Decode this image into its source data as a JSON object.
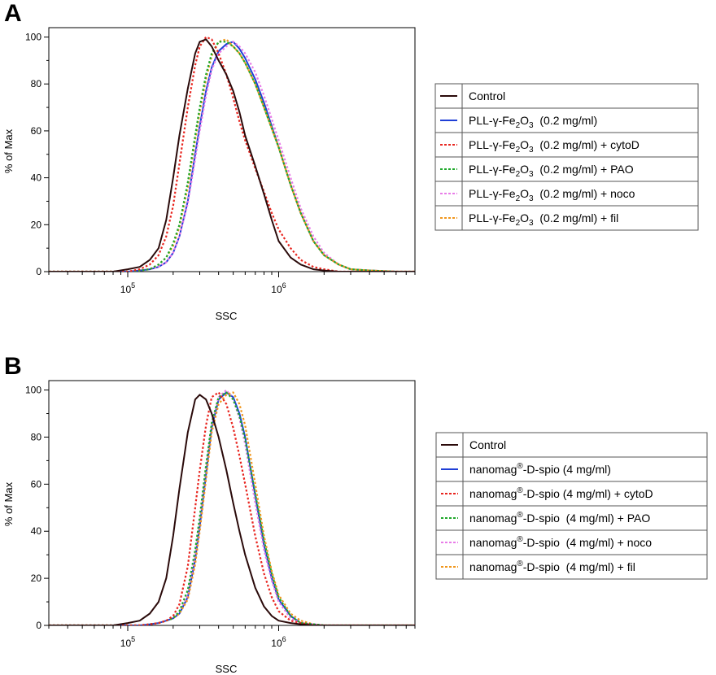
{
  "chart_data": [
    {
      "type": "line",
      "panel_label": "A",
      "xlabel": "SSC",
      "ylabel": "% of Max",
      "x_scale": "log",
      "xlim": [
        30000,
        8000000
      ],
      "ylim": [
        0,
        104
      ],
      "x_ticks": [
        {
          "base": "10",
          "exp": "5"
        },
        {
          "base": "10",
          "exp": "6"
        }
      ],
      "y_ticks": [
        "0",
        "20",
        "40",
        "60",
        "80",
        "100"
      ],
      "legend": {
        "placement": "right"
      },
      "x": [
        30000,
        80000,
        100000,
        120000,
        140000,
        160000,
        180000,
        200000,
        220000,
        250000,
        280000,
        300000,
        330000,
        360000,
        400000,
        450000,
        500000,
        550000,
        600000,
        700000,
        800000,
        900000,
        1000000,
        1200000,
        1400000,
        1700000,
        2000000,
        2500000,
        3000000,
        4000000,
        6000000,
        8000000
      ],
      "series": [
        {
          "name": "Control",
          "color": "#2a0a0a",
          "dash": "solid",
          "values": [
            0,
            0,
            1,
            2,
            5,
            10,
            22,
            40,
            58,
            78,
            93,
            98,
            99,
            96,
            90,
            84,
            77,
            68,
            58,
            45,
            33,
            22,
            13,
            6,
            3,
            1,
            0.5,
            0,
            0,
            0,
            0,
            0
          ]
        },
        {
          "name": "PLL-γ-Fe₂O₃ (0.2 mg/ml)",
          "color": "#1f3fd6",
          "dash": "solid",
          "values": [
            0,
            0,
            0,
            0.5,
            1,
            2,
            4,
            8,
            15,
            30,
            50,
            62,
            77,
            87,
            94,
            97,
            98,
            95,
            91,
            82,
            72,
            62,
            53,
            37,
            25,
            13,
            7,
            3,
            1,
            0.5,
            0,
            0
          ]
        },
        {
          "name": "PLL-γ-Fe₂O₃ (0.2 mg/ml) + cytoD",
          "color": "#e8251f",
          "dash": "dashed",
          "values": [
            0,
            0,
            0,
            1,
            3,
            7,
            15,
            28,
            46,
            70,
            88,
            96,
            100,
            99,
            93,
            84,
            74,
            64,
            56,
            44,
            34,
            25,
            18,
            10,
            5,
            2,
            1,
            0,
            0,
            0,
            0,
            0
          ]
        },
        {
          "name": "PLL-γ-Fe₂O₃ (0.2 mg/ml) + PAO",
          "color": "#1ea82a",
          "dash": "dashed",
          "values": [
            0,
            0,
            0,
            0.5,
            1,
            3,
            6,
            12,
            20,
            38,
            58,
            70,
            84,
            93,
            98,
            98,
            96,
            93,
            89,
            80,
            70,
            61,
            53,
            37,
            25,
            13,
            7,
            3,
            1,
            0.5,
            0,
            0
          ]
        },
        {
          "name": "PLL-γ-Fe₂O₃ (0.2 mg/ml) + noco",
          "color": "#e87ce8",
          "dash": "dashed",
          "values": [
            0,
            0,
            0,
            0.5,
            1,
            2,
            4,
            8,
            15,
            29,
            48,
            60,
            75,
            86,
            93,
            96,
            98,
            96,
            93,
            85,
            75,
            65,
            56,
            40,
            27,
            15,
            8,
            3,
            1,
            0.5,
            0,
            0
          ]
        },
        {
          "name": "PLL-γ-Fe₂O₃ (0.2 mg/ml) + fil",
          "color": "#f0961c",
          "dash": "dashed",
          "values": [
            0,
            0,
            0,
            0.5,
            1,
            3,
            6,
            11,
            19,
            36,
            56,
            68,
            82,
            92,
            98,
            99,
            96,
            93,
            89,
            80,
            70,
            61,
            53,
            37,
            25,
            13,
            7,
            3,
            1,
            0.5,
            0,
            0
          ]
        }
      ]
    },
    {
      "type": "line",
      "panel_label": "B",
      "xlabel": "SSC",
      "ylabel": "% of Max",
      "x_scale": "log",
      "xlim": [
        30000,
        8000000
      ],
      "ylim": [
        0,
        104
      ],
      "x_ticks": [
        {
          "base": "10",
          "exp": "5"
        },
        {
          "base": "10",
          "exp": "6"
        }
      ],
      "y_ticks": [
        "0",
        "20",
        "40",
        "60",
        "80",
        "100"
      ],
      "legend": {
        "placement": "right"
      },
      "x": [
        30000,
        80000,
        100000,
        120000,
        140000,
        160000,
        180000,
        200000,
        220000,
        250000,
        280000,
        300000,
        330000,
        360000,
        400000,
        450000,
        500000,
        550000,
        600000,
        700000,
        800000,
        900000,
        1000000,
        1200000,
        1400000,
        1700000,
        2000000,
        2500000,
        3000000,
        4000000,
        6000000,
        8000000
      ],
      "series": [
        {
          "name": "Control",
          "color": "#2a0a0a",
          "dash": "solid",
          "values": [
            0,
            0,
            1,
            2,
            5,
            10,
            20,
            38,
            58,
            82,
            96,
            98,
            96,
            90,
            80,
            66,
            52,
            40,
            30,
            16,
            8,
            4,
            2,
            1,
            0.5,
            0,
            0,
            0,
            0,
            0,
            0,
            0
          ]
        },
        {
          "name": "nanomag®-D-spio (4 mg/ml)",
          "color": "#1f3fd6",
          "dash": "solid",
          "values": [
            0,
            0,
            0,
            0,
            0.5,
            1,
            2,
            3,
            5,
            12,
            28,
            42,
            64,
            84,
            96,
            99,
            97,
            90,
            80,
            55,
            34,
            20,
            11,
            4,
            1,
            0.5,
            0,
            0,
            0,
            0,
            0,
            0
          ]
        },
        {
          "name": "nanomag®-D-spio (4 mg/ml) + cytoD",
          "color": "#e8251f",
          "dash": "dashed",
          "values": [
            0,
            0,
            0,
            0,
            0.5,
            1,
            2,
            4,
            9,
            25,
            50,
            66,
            85,
            97,
            99,
            94,
            84,
            72,
            60,
            38,
            22,
            12,
            6,
            2,
            1,
            0,
            0,
            0,
            0,
            0,
            0,
            0
          ]
        },
        {
          "name": "nanomag®-D-spio (4 mg/ml) + PAO",
          "color": "#1ea82a",
          "dash": "dashed",
          "values": [
            0,
            0,
            0,
            0,
            0.5,
            1,
            2,
            3,
            6,
            15,
            32,
            46,
            68,
            86,
            97,
            99,
            96,
            89,
            79,
            56,
            36,
            22,
            12,
            4,
            1,
            0.5,
            0,
            0,
            0,
            0,
            0,
            0
          ]
        },
        {
          "name": "nanomag®-D-spio (4 mg/ml) + noco",
          "color": "#e87ce8",
          "dash": "dashed",
          "values": [
            0,
            0,
            0,
            0,
            0.5,
            1,
            2,
            3,
            5,
            13,
            30,
            44,
            66,
            85,
            97,
            100,
            96,
            88,
            77,
            52,
            32,
            19,
            10,
            3,
            1,
            0.5,
            0,
            0,
            0,
            0,
            0,
            0
          ]
        },
        {
          "name": "nanomag®-D-spio (4 mg/ml) + fil",
          "color": "#f0961c",
          "dash": "dashed",
          "values": [
            0,
            0,
            0,
            0,
            0.5,
            1,
            2,
            3,
            5,
            11,
            26,
            40,
            62,
            82,
            94,
            98,
            99,
            94,
            85,
            60,
            38,
            23,
            13,
            5,
            2,
            0.5,
            0,
            0,
            0,
            0,
            0,
            0
          ]
        }
      ]
    }
  ],
  "legends": [
    {
      "rows": [
        {
          "parts": [
            {
              "t": "Control"
            }
          ]
        },
        {
          "parts": [
            {
              "t": "PLL-γ-Fe"
            },
            {
              "t": "2",
              "sub": true
            },
            {
              "t": "O"
            },
            {
              "t": "3",
              "sub": true
            },
            {
              "t": "  (0.2 mg/ml)"
            }
          ]
        },
        {
          "parts": [
            {
              "t": "PLL-γ-Fe"
            },
            {
              "t": "2",
              "sub": true
            },
            {
              "t": "O"
            },
            {
              "t": "3",
              "sub": true
            },
            {
              "t": "  (0.2 mg/ml) + cytoD"
            }
          ]
        },
        {
          "parts": [
            {
              "t": "PLL-γ-Fe"
            },
            {
              "t": "2",
              "sub": true
            },
            {
              "t": "O"
            },
            {
              "t": "3",
              "sub": true
            },
            {
              "t": "  (0.2 mg/ml) + PAO"
            }
          ]
        },
        {
          "parts": [
            {
              "t": "PLL-γ-Fe"
            },
            {
              "t": "2",
              "sub": true
            },
            {
              "t": "O"
            },
            {
              "t": "3",
              "sub": true
            },
            {
              "t": "  (0.2 mg/ml) + noco"
            }
          ]
        },
        {
          "parts": [
            {
              "t": "PLL-γ-Fe"
            },
            {
              "t": "2",
              "sub": true
            },
            {
              "t": "O"
            },
            {
              "t": "3",
              "sub": true
            },
            {
              "t": "  (0.2 mg/ml) + fil"
            }
          ]
        }
      ]
    },
    {
      "rows": [
        {
          "parts": [
            {
              "t": "Control"
            }
          ]
        },
        {
          "parts": [
            {
              "t": "nanomag"
            },
            {
              "t": "®",
              "sup": true
            },
            {
              "t": "-D-spio (4 mg/ml)"
            }
          ]
        },
        {
          "parts": [
            {
              "t": "nanomag"
            },
            {
              "t": "®",
              "sup": true
            },
            {
              "t": "-D-spio (4 mg/ml) + cytoD"
            }
          ]
        },
        {
          "parts": [
            {
              "t": "nanomag"
            },
            {
              "t": "®",
              "sup": true
            },
            {
              "t": "-D-spio  (4 mg/ml) + PAO"
            }
          ]
        },
        {
          "parts": [
            {
              "t": "nanomag"
            },
            {
              "t": "®",
              "sup": true
            },
            {
              "t": "-D-spio  (4 mg/ml) + noco"
            }
          ]
        },
        {
          "parts": [
            {
              "t": "nanomag"
            },
            {
              "t": "®",
              "sup": true
            },
            {
              "t": "-D-spio  (4 mg/ml) + fil"
            }
          ]
        }
      ]
    }
  ]
}
